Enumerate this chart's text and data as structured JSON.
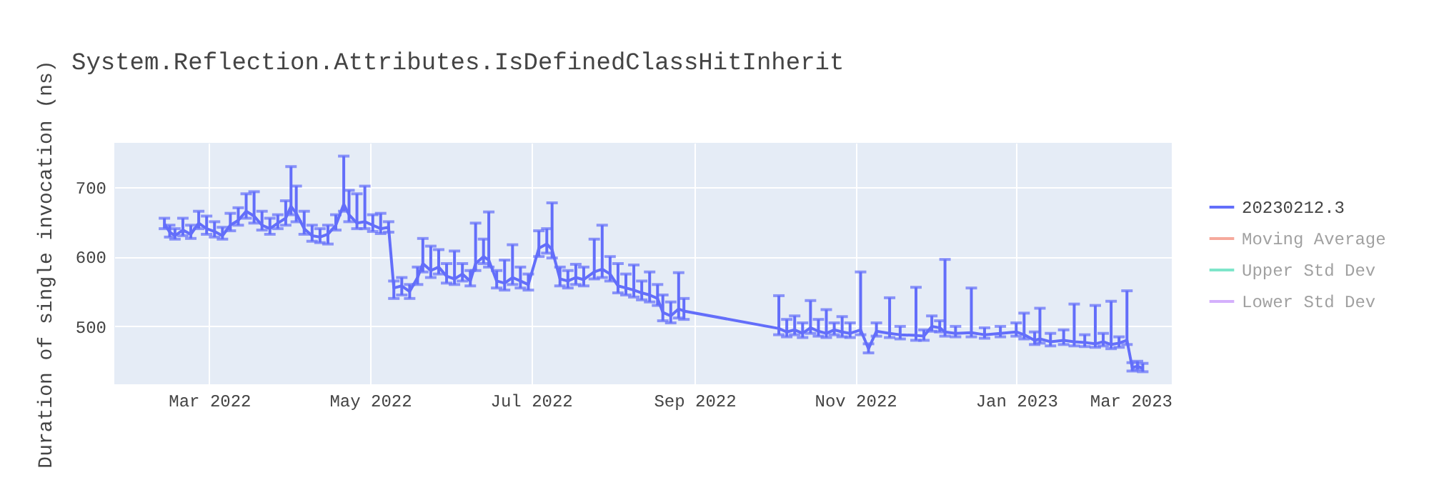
{
  "chart_data": {
    "type": "line",
    "title": "System.Reflection.Attributes.IsDefinedClassHitInherit",
    "ylabel": "Duration of single invocation (ns)",
    "xlim": [
      "2022-01-24",
      "2023-03-01"
    ],
    "xticks": [
      {
        "value": "2022-03-01",
        "label": "Mar 2022"
      },
      {
        "value": "2022-05-01",
        "label": "May 2022"
      },
      {
        "value": "2022-07-01",
        "label": "Jul 2022"
      },
      {
        "value": "2022-09-01",
        "label": "Sep 2022"
      },
      {
        "value": "2022-11-01",
        "label": "Nov 2022"
      },
      {
        "value": "2023-01-01",
        "label": "Jan 2023"
      },
      {
        "value": "2023-03-01",
        "label": "Mar 2023"
      }
    ],
    "ylim": [
      417,
      763
    ],
    "yticks": [
      500,
      600,
      700
    ],
    "grid": true,
    "legend": "top right",
    "marker": "none",
    "line_style": "solid",
    "x": [
      "2022-02-12",
      "2022-02-14",
      "2022-02-16",
      "2022-02-19",
      "2022-02-22",
      "2022-02-25",
      "2022-02-28",
      "2022-03-03",
      "2022-03-06",
      "2022-03-09",
      "2022-03-12",
      "2022-03-15",
      "2022-03-18",
      "2022-03-21",
      "2022-03-24",
      "2022-03-27",
      "2022-03-30",
      "2022-04-01",
      "2022-04-03",
      "2022-04-06",
      "2022-04-09",
      "2022-04-12",
      "2022-04-15",
      "2022-04-18",
      "2022-04-21",
      "2022-04-23",
      "2022-04-26",
      "2022-04-29",
      "2022-05-02",
      "2022-05-05",
      "2022-05-08",
      "2022-05-10",
      "2022-05-13",
      "2022-05-16",
      "2022-05-19",
      "2022-05-21",
      "2022-05-24",
      "2022-05-27",
      "2022-05-30",
      "2022-06-02",
      "2022-06-05",
      "2022-06-08",
      "2022-06-10",
      "2022-06-13",
      "2022-06-15",
      "2022-06-18",
      "2022-06-21",
      "2022-06-24",
      "2022-06-27",
      "2022-06-30",
      "2022-07-04",
      "2022-07-07",
      "2022-07-09",
      "2022-07-12",
      "2022-07-15",
      "2022-07-18",
      "2022-07-21",
      "2022-07-25",
      "2022-07-28",
      "2022-07-31",
      "2022-08-03",
      "2022-08-06",
      "2022-08-09",
      "2022-08-12",
      "2022-08-15",
      "2022-08-18",
      "2022-08-20",
      "2022-08-23",
      "2022-08-26",
      "2022-08-28",
      "2022-10-03",
      "2022-10-06",
      "2022-10-09",
      "2022-10-12",
      "2022-10-15",
      "2022-10-18",
      "2022-10-21",
      "2022-10-24",
      "2022-10-27",
      "2022-10-30",
      "2022-11-03",
      "2022-11-06",
      "2022-11-09",
      "2022-11-14",
      "2022-11-18",
      "2022-11-24",
      "2022-11-27",
      "2022-11-30",
      "2022-12-03",
      "2022-12-05",
      "2022-12-09",
      "2022-12-15",
      "2022-12-20",
      "2022-12-26",
      "2023-01-01",
      "2023-01-04",
      "2023-01-08",
      "2023-01-10",
      "2023-01-14",
      "2023-01-19",
      "2023-01-23",
      "2023-01-27",
      "2023-01-31",
      "2023-02-03",
      "2023-02-06",
      "2023-02-09",
      "2023-02-12",
      "2023-02-14",
      "2023-02-16",
      "2023-02-18"
    ],
    "series": [
      {
        "name": "20230212.3",
        "color": "#636efa",
        "values": [
          647,
          635,
          630,
          638,
          632,
          648,
          640,
          636,
          630,
          645,
          652,
          665,
          658,
          645,
          640,
          648,
          655,
          672,
          662,
          640,
          630,
          628,
          632,
          645,
          675,
          660,
          648,
          650,
          645,
          640,
          642,
          555,
          558,
          550,
          570,
          590,
          580,
          585,
          572,
          568,
          575,
          565,
          590,
          600,
          595,
          565,
          562,
          570,
          565,
          560,
          612,
          618,
          610,
          568,
          565,
          570,
          567,
          578,
          582,
          575,
          558,
          555,
          552,
          548,
          545,
          540,
          520,
          515,
          525,
          522,
          497,
          492,
          495,
          490,
          498,
          493,
          490,
          495,
          492,
          490,
          495,
          468,
          493,
          490,
          488,
          487,
          486,
          500,
          498,
          492,
          490,
          491,
          488,
          490,
          492,
          488,
          480,
          482,
          478,
          480,
          478,
          477,
          475,
          478,
          474,
          476,
          480,
          441,
          443,
          440
        ],
        "errors": [
          [
            640,
            655
          ],
          [
            628,
            645
          ],
          [
            625,
            640
          ],
          [
            630,
            655
          ],
          [
            626,
            645
          ],
          [
            640,
            665
          ],
          [
            632,
            658
          ],
          [
            628,
            650
          ],
          [
            625,
            642
          ],
          [
            637,
            662
          ],
          [
            645,
            670
          ],
          [
            655,
            690
          ],
          [
            648,
            693
          ],
          [
            638,
            665
          ],
          [
            632,
            655
          ],
          [
            640,
            660
          ],
          [
            645,
            680
          ],
          [
            660,
            729
          ],
          [
            650,
            701
          ],
          [
            632,
            665
          ],
          [
            622,
            645
          ],
          [
            620,
            640
          ],
          [
            618,
            645
          ],
          [
            638,
            660
          ],
          [
            665,
            744
          ],
          [
            650,
            695
          ],
          [
            640,
            690
          ],
          [
            640,
            701
          ],
          [
            636,
            660
          ],
          [
            633,
            662
          ],
          [
            635,
            650
          ],
          [
            540,
            565
          ],
          [
            545,
            570
          ],
          [
            540,
            560
          ],
          [
            560,
            585
          ],
          [
            578,
            626
          ],
          [
            570,
            615
          ],
          [
            575,
            610
          ],
          [
            562,
            590
          ],
          [
            560,
            608
          ],
          [
            565,
            590
          ],
          [
            558,
            580
          ],
          [
            580,
            648
          ],
          [
            590,
            625
          ],
          [
            585,
            664
          ],
          [
            555,
            580
          ],
          [
            552,
            595
          ],
          [
            560,
            617
          ],
          [
            555,
            585
          ],
          [
            552,
            575
          ],
          [
            600,
            637
          ],
          [
            605,
            640
          ],
          [
            598,
            677
          ],
          [
            558,
            585
          ],
          [
            555,
            580
          ],
          [
            560,
            589
          ],
          [
            558,
            585
          ],
          [
            568,
            625
          ],
          [
            570,
            645
          ],
          [
            565,
            600
          ],
          [
            548,
            590
          ],
          [
            545,
            575
          ],
          [
            542,
            588
          ],
          [
            538,
            565
          ],
          [
            535,
            578
          ],
          [
            530,
            560
          ],
          [
            508,
            545
          ],
          [
            505,
            535
          ],
          [
            512,
            577
          ],
          [
            510,
            540
          ],
          [
            488,
            544
          ],
          [
            485,
            510
          ],
          [
            488,
            515
          ],
          [
            484,
            505
          ],
          [
            490,
            537
          ],
          [
            486,
            510
          ],
          [
            484,
            524
          ],
          [
            488,
            505
          ],
          [
            485,
            514
          ],
          [
            484,
            505
          ],
          [
            488,
            578
          ],
          [
            462,
            475
          ],
          [
            486,
            505
          ],
          [
            484,
            541
          ],
          [
            482,
            500
          ],
          [
            480,
            556
          ],
          [
            480,
            495
          ],
          [
            493,
            515
          ],
          [
            492,
            508
          ],
          [
            486,
            596
          ],
          [
            485,
            500
          ],
          [
            485,
            555
          ],
          [
            483,
            498
          ],
          [
            485,
            500
          ],
          [
            486,
            505
          ],
          [
            482,
            519
          ],
          [
            474,
            492
          ],
          [
            476,
            526
          ],
          [
            472,
            490
          ],
          [
            474,
            495
          ],
          [
            472,
            532
          ],
          [
            471,
            488
          ],
          [
            470,
            530
          ],
          [
            472,
            490
          ],
          [
            468,
            536
          ],
          [
            470,
            485
          ],
          [
            474,
            551
          ],
          [
            436,
            448
          ],
          [
            438,
            450
          ],
          [
            435,
            447
          ]
        ]
      },
      {
        "name": "Moving Average",
        "color": "#ef553b",
        "values": [
          null,
          null,
          null,
          null,
          null,
          null,
          null,
          null,
          null,
          null,
          null,
          null,
          null,
          null,
          null,
          null,
          null,
          null,
          null,
          null,
          null,
          null,
          null,
          null,
          null,
          null,
          null,
          null,
          null,
          null,
          null,
          null,
          null,
          null,
          null,
          null,
          null,
          null,
          null,
          null,
          null,
          null,
          null,
          null,
          null,
          null,
          null,
          null,
          null,
          null,
          null,
          null,
          null,
          null,
          null,
          null,
          null,
          null,
          null,
          null,
          null,
          null,
          null,
          null,
          null,
          null,
          null,
          null,
          null,
          null,
          null,
          null,
          null,
          null,
          null,
          null,
          null,
          null,
          null,
          null,
          null,
          null,
          null,
          null,
          null,
          null,
          null,
          null,
          null,
          null,
          null,
          null,
          null,
          null,
          null,
          null,
          null,
          null,
          null,
          null,
          null,
          null,
          null,
          null,
          null,
          null,
          null,
          null,
          null,
          null
        ]
      },
      {
        "name": "Upper Std Dev",
        "color": "#00cc96",
        "values": [
          null,
          null,
          null,
          null,
          null,
          null,
          null,
          null,
          null,
          null,
          null,
          null,
          null,
          null,
          null,
          null,
          null,
          null,
          null,
          null,
          null,
          null,
          null,
          null,
          null,
          null,
          null,
          null,
          null,
          null,
          null,
          null,
          null,
          null,
          null,
          null,
          null,
          null,
          null,
          null,
          null,
          null,
          null,
          null,
          null,
          null,
          null,
          null,
          null,
          null,
          null,
          null,
          null,
          null,
          null,
          null,
          null,
          null,
          null,
          null,
          null,
          null,
          null,
          null,
          null,
          null,
          null,
          null,
          null,
          null,
          null,
          null,
          null,
          null,
          null,
          null,
          null,
          null,
          null,
          null,
          null,
          null,
          null,
          null,
          null,
          null,
          null,
          null,
          null,
          null,
          null,
          null,
          null,
          null,
          null,
          null,
          null,
          null,
          null,
          null,
          null,
          null,
          null,
          null,
          null,
          null,
          null,
          null,
          null,
          null
        ]
      },
      {
        "name": "Lower Std Dev",
        "color": "#ab63fa",
        "values": [
          null,
          null,
          null,
          null,
          null,
          null,
          null,
          null,
          null,
          null,
          null,
          null,
          null,
          null,
          null,
          null,
          null,
          null,
          null,
          null,
          null,
          null,
          null,
          null,
          null,
          null,
          null,
          null,
          null,
          null,
          null,
          null,
          null,
          null,
          null,
          null,
          null,
          null,
          null,
          null,
          null,
          null,
          null,
          null,
          null,
          null,
          null,
          null,
          null,
          null,
          null,
          null,
          null,
          null,
          null,
          null,
          null,
          null,
          null,
          null,
          null,
          null,
          null,
          null,
          null,
          null,
          null,
          null,
          null,
          null,
          null,
          null,
          null,
          null,
          null,
          null,
          null,
          null,
          null,
          null,
          null,
          null,
          null,
          null,
          null,
          null,
          null,
          null,
          null,
          null,
          null,
          null,
          null,
          null,
          null,
          null,
          null,
          null,
          null,
          null,
          null,
          null,
          null,
          null,
          null,
          null,
          null,
          null,
          null,
          null
        ]
      }
    ]
  }
}
